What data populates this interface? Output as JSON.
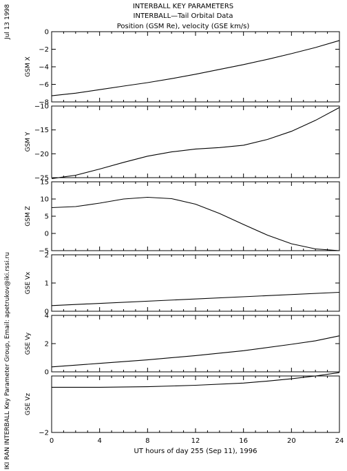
{
  "header": {
    "line1": "INTERBALL KEY PARAMETERS",
    "line2": "INTERBALL—Tail Orbital Data",
    "line3": "Position (GSM Re), velocity (GSE km/s)"
  },
  "side_text": {
    "date": "Jul 13 1998",
    "credit": "IKI RAN INTERBALL Key Parameter Group, Email: apetrukov@iki.rssi.ru"
  },
  "chart_data": {
    "type": "line",
    "x_axis": {
      "label": "UT hours of day 255 (Sep 11), 1996",
      "range": [
        0,
        24
      ],
      "ticks": [
        0,
        4,
        8,
        12,
        16,
        20,
        24
      ],
      "tick_labels": [
        "0",
        "4",
        "8",
        "12",
        "16",
        "20",
        "24"
      ]
    },
    "panels": [
      {
        "ylabel": "GSM X",
        "ylim": [
          -8,
          0
        ],
        "yticks": [
          0,
          -2,
          -4,
          -6,
          -8
        ],
        "ytick_labels": [
          "0",
          "−2",
          "−4",
          "−6",
          "−8"
        ],
        "series": [
          {
            "x": [
              0,
              2,
              4,
              6,
              8,
              10,
              12,
              14,
              16,
              18,
              20,
              22,
              24
            ],
            "y": [
              -7.3,
              -7.0,
              -6.6,
              -6.2,
              -5.8,
              -5.35,
              -4.85,
              -4.3,
              -3.75,
              -3.15,
              -2.5,
              -1.8,
              -1.0
            ]
          }
        ]
      },
      {
        "ylabel": "GSM Y",
        "ylim": [
          -25,
          -10
        ],
        "yticks": [
          -10,
          -15,
          -20,
          -25
        ],
        "ytick_labels": [
          "−10",
          "−15",
          "−20",
          "−25"
        ],
        "series": [
          {
            "x": [
              0,
              2,
              4,
              6,
              8,
              10,
              12,
              14,
              16,
              18,
              20,
              22,
              24
            ],
            "y": [
              -25.2,
              -24.5,
              -23.2,
              -21.8,
              -20.5,
              -19.6,
              -19.0,
              -18.7,
              -18.2,
              -17.0,
              -15.3,
              -13.0,
              -10.3
            ]
          }
        ]
      },
      {
        "ylabel": "GSM Z",
        "ylim": [
          -5,
          15
        ],
        "yticks": [
          15,
          10,
          5,
          0,
          -5
        ],
        "ytick_labels": [
          "15",
          "10",
          "5",
          "0",
          "−5"
        ],
        "series": [
          {
            "x": [
              0,
              2,
              4,
              6,
              8,
              10,
              12,
              14,
              16,
              18,
              20,
              22,
              24
            ],
            "y": [
              7.5,
              7.8,
              8.8,
              10.0,
              10.5,
              10.1,
              8.5,
              5.8,
              2.6,
              -0.5,
              -3.0,
              -4.5,
              -5.0
            ]
          }
        ]
      },
      {
        "ylabel": "GSE Vx",
        "ylim": [
          0,
          2
        ],
        "yticks": [
          2,
          1,
          0
        ],
        "ytick_labels": [
          "2",
          "1",
          "0"
        ],
        "series": [
          {
            "x": [
              0,
              24
            ],
            "y": [
              0.2,
              0.67
            ]
          }
        ]
      },
      {
        "ylabel": "GSE Vy",
        "ylim": [
          0,
          4
        ],
        "yticks": [
          4,
          2,
          0
        ],
        "ytick_labels": [
          "4",
          "2",
          "0"
        ],
        "series": [
          {
            "x": [
              0,
              4,
              8,
              12,
              16,
              20,
              22,
              24
            ],
            "y": [
              0.35,
              0.6,
              0.85,
              1.15,
              1.5,
              1.95,
              2.2,
              2.55
            ]
          }
        ]
      },
      {
        "ylabel": "GSE Vz",
        "ylim": [
          -2,
          0
        ],
        "yticks": [
          0,
          -2
        ],
        "ytick_labels": [
          "",
          "−2"
        ],
        "series": [
          {
            "x": [
              0,
              4,
              8,
              12,
              16,
              18,
              20,
              22,
              24
            ],
            "y": [
              -0.4,
              -0.4,
              -0.38,
              -0.33,
              -0.25,
              -0.18,
              -0.1,
              0.0,
              0.12
            ]
          }
        ]
      }
    ]
  }
}
